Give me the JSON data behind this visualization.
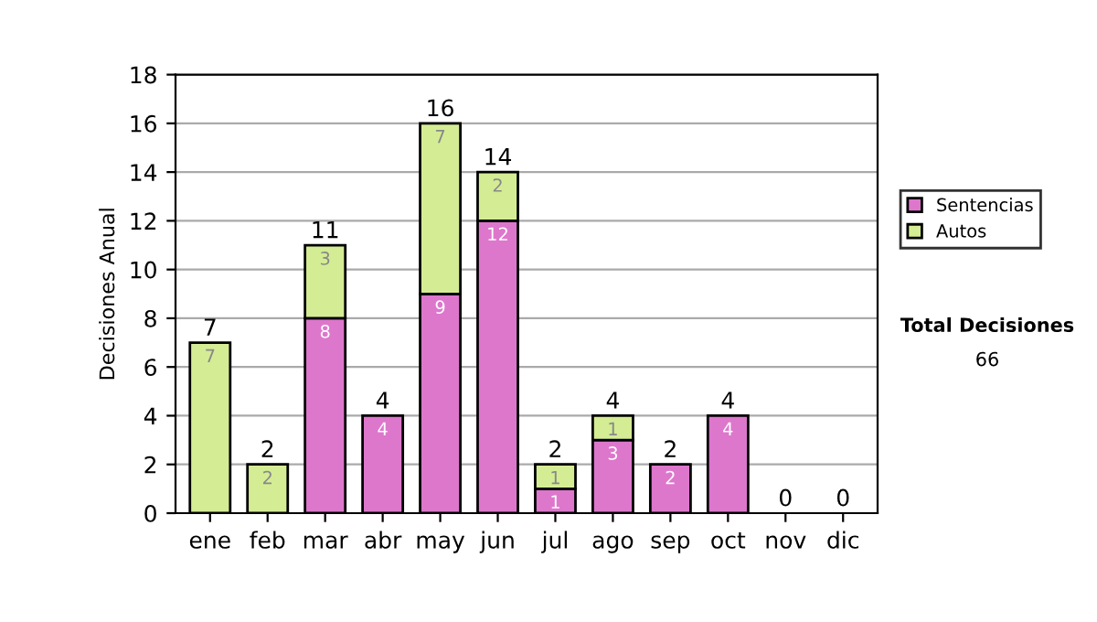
{
  "chart_data": {
    "type": "bar",
    "stacked": true,
    "ylabel": "Decisiones Anual",
    "categories": [
      "ene",
      "feb",
      "mar",
      "abr",
      "may",
      "jun",
      "jul",
      "ago",
      "sep",
      "oct",
      "nov",
      "dic"
    ],
    "series": [
      {
        "name": "Sentencias",
        "color": "#dd77cc",
        "values": [
          0,
          0,
          8,
          4,
          9,
          12,
          1,
          3,
          2,
          4,
          0,
          0
        ],
        "value_labels": [
          null,
          null,
          "8",
          "4",
          "9",
          "12",
          "1",
          "3",
          "2",
          "4",
          null,
          null
        ]
      },
      {
        "name": "Autos",
        "color": "#d4ec94",
        "values": [
          7,
          2,
          3,
          0,
          7,
          2,
          1,
          1,
          0,
          0,
          0,
          0
        ],
        "value_labels": [
          "7",
          "2",
          "3",
          null,
          "7",
          "2",
          "1",
          "1",
          null,
          null,
          null,
          null
        ]
      }
    ],
    "totals": [
      "7",
      "2",
      "11",
      "4",
      "16",
      "14",
      "2",
      "4",
      "2",
      "4",
      "0",
      "0"
    ],
    "ylim": [
      0,
      18
    ],
    "yticks": [
      0,
      2,
      4,
      6,
      8,
      10,
      12,
      14,
      16,
      18
    ],
    "grid": "y",
    "legend": "right",
    "annotations": [
      "Total Decisiones",
      "66"
    ]
  }
}
